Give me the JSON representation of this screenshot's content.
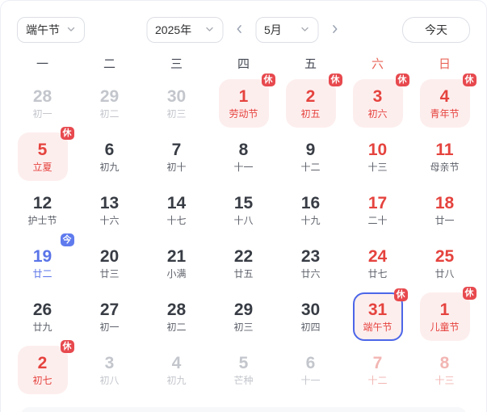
{
  "toolbar": {
    "festival_select": {
      "label": "端午节"
    },
    "year_select": {
      "label": "2025年"
    },
    "month_select": {
      "label": "5月"
    },
    "today_button": {
      "label": "今天"
    }
  },
  "weekdays": [
    {
      "label": "一",
      "weekend": false
    },
    {
      "label": "二",
      "weekend": false
    },
    {
      "label": "三",
      "weekend": false
    },
    {
      "label": "四",
      "weekend": false
    },
    {
      "label": "五",
      "weekend": false
    },
    {
      "label": "六",
      "weekend": true
    },
    {
      "label": "日",
      "weekend": true
    }
  ],
  "weeks": [
    [
      {
        "day": "28",
        "sub": "初一",
        "style": "dim"
      },
      {
        "day": "29",
        "sub": "初二",
        "style": "dim"
      },
      {
        "day": "30",
        "sub": "初三",
        "style": "dim"
      },
      {
        "day": "1",
        "sub": "劳动节",
        "style": "holiday",
        "badge": "休"
      },
      {
        "day": "2",
        "sub": "初五",
        "style": "holiday",
        "badge": "休"
      },
      {
        "day": "3",
        "sub": "初六",
        "style": "holiday",
        "badge": "休"
      },
      {
        "day": "4",
        "sub": "青年节",
        "style": "holiday",
        "badge": "休"
      }
    ],
    [
      {
        "day": "5",
        "sub": "立夏",
        "style": "holiday",
        "badge": "休"
      },
      {
        "day": "6",
        "sub": "初九",
        "style": "normal"
      },
      {
        "day": "7",
        "sub": "初十",
        "style": "normal"
      },
      {
        "day": "8",
        "sub": "十一",
        "style": "normal"
      },
      {
        "day": "9",
        "sub": "十二",
        "style": "normal"
      },
      {
        "day": "10",
        "sub": "十三",
        "style": "weekend"
      },
      {
        "day": "11",
        "sub": "母亲节",
        "style": "weekend"
      }
    ],
    [
      {
        "day": "12",
        "sub": "护士节",
        "style": "normal"
      },
      {
        "day": "13",
        "sub": "十六",
        "style": "normal"
      },
      {
        "day": "14",
        "sub": "十七",
        "style": "normal"
      },
      {
        "day": "15",
        "sub": "十八",
        "style": "normal"
      },
      {
        "day": "16",
        "sub": "十九",
        "style": "normal"
      },
      {
        "day": "17",
        "sub": "二十",
        "style": "weekend"
      },
      {
        "day": "18",
        "sub": "廿一",
        "style": "weekend"
      }
    ],
    [
      {
        "day": "19",
        "sub": "廿二",
        "style": "today",
        "badge": "今"
      },
      {
        "day": "20",
        "sub": "廿三",
        "style": "normal"
      },
      {
        "day": "21",
        "sub": "小满",
        "style": "normal"
      },
      {
        "day": "22",
        "sub": "廿五",
        "style": "normal"
      },
      {
        "day": "23",
        "sub": "廿六",
        "style": "normal"
      },
      {
        "day": "24",
        "sub": "廿七",
        "style": "weekend"
      },
      {
        "day": "25",
        "sub": "廿八",
        "style": "weekend"
      }
    ],
    [
      {
        "day": "26",
        "sub": "廿九",
        "style": "normal"
      },
      {
        "day": "27",
        "sub": "初一",
        "style": "normal"
      },
      {
        "day": "28",
        "sub": "初二",
        "style": "normal"
      },
      {
        "day": "29",
        "sub": "初三",
        "style": "normal"
      },
      {
        "day": "30",
        "sub": "初四",
        "style": "normal"
      },
      {
        "day": "31",
        "sub": "端午节",
        "style": "holiday",
        "badge": "休",
        "selected": true
      },
      {
        "day": "1",
        "sub": "儿童节",
        "style": "holiday",
        "badge": "休"
      }
    ],
    [
      {
        "day": "2",
        "sub": "初七",
        "style": "holiday",
        "badge": "休"
      },
      {
        "day": "3",
        "sub": "初八",
        "style": "dim"
      },
      {
        "day": "4",
        "sub": "初九",
        "style": "dim"
      },
      {
        "day": "5",
        "sub": "芒种",
        "style": "dim"
      },
      {
        "day": "6",
        "sub": "十一",
        "style": "dim"
      },
      {
        "day": "7",
        "sub": "十二",
        "style": "dimweekend"
      },
      {
        "day": "8",
        "sub": "十三",
        "style": "dimweekend"
      }
    ]
  ],
  "colors": {
    "accent_red": "#e5433e",
    "holiday_bg": "#fdeeee",
    "rest_badge_bg": "#e7494e",
    "today_blue": "#5a74e8",
    "today_badge_bg": "#5f7bee",
    "selected_border": "#4c66e8",
    "dim_gray": "#c3c6cc"
  }
}
